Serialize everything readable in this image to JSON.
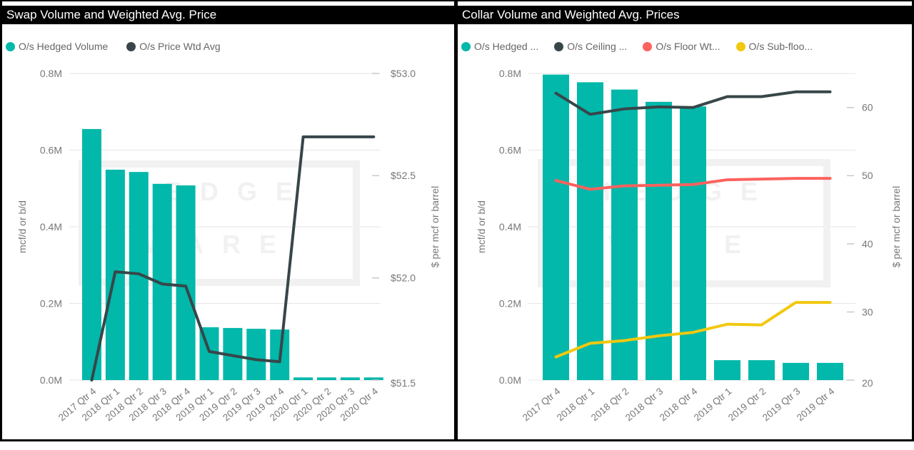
{
  "theme": {
    "teal": "#01B8AA",
    "dark": "#374649",
    "red": "#FD625E",
    "yellow": "#F2C80F",
    "axis_text": "#777777",
    "legend_text": "#666666",
    "gridline": "#E6E6E6",
    "tick_dash": "#C8C8C8",
    "title_bg": "#000000",
    "title_fg": "#FFFFFF",
    "watermark_color": "#F1F1F1",
    "frame": "#000000"
  },
  "watermark": {
    "line1": "HEDGE",
    "line2": "WARE"
  },
  "chart_data": [
    {
      "type": "bar",
      "title": "Swap Volume and Weighted Avg. Price",
      "legend": [
        {
          "label": "O/s Hedged Volume",
          "color": "#01B8AA"
        },
        {
          "label": "O/s Price Wtd Avg",
          "color": "#374649"
        }
      ],
      "categories": [
        "2017 Qtr 4",
        "2018 Qtr 1",
        "2018 Qtr 2",
        "2018 Qtr 3",
        "2018 Qtr 4",
        "2019 Qtr 1",
        "2019 Qtr 2",
        "2019 Qtr 3",
        "2019 Qtr 4",
        "2020 Qtr 1",
        "2020 Qtr 2",
        "2020 Qtr 3",
        "2020 Qtr 4"
      ],
      "bar_series": {
        "name": "O/s Hedged Volume",
        "axis": "y1",
        "color": "#01B8AA",
        "values": [
          0.655,
          0.549,
          0.543,
          0.512,
          0.508,
          0.138,
          0.136,
          0.134,
          0.132,
          0.007,
          0.007,
          0.007,
          0.007
        ]
      },
      "line_series": [
        {
          "name": "O/s Price Wtd Avg",
          "axis": "y2",
          "color": "#374649",
          "values": [
            51.5,
            52.03,
            52.02,
            51.97,
            51.96,
            51.64,
            51.62,
            51.6,
            51.59,
            52.69,
            52.69,
            52.69,
            52.69
          ]
        }
      ],
      "y1_axis": {
        "title": "mcf/d or b/d",
        "min": 0,
        "max": 0.8,
        "ticks": [
          {
            "v": 0,
            "label": "0.0M"
          },
          {
            "v": 0.2,
            "label": "0.2M"
          },
          {
            "v": 0.4,
            "label": "0.4M"
          },
          {
            "v": 0.6,
            "label": "0.6M"
          },
          {
            "v": 0.8,
            "label": "0.8M"
          }
        ]
      },
      "y2_axis": {
        "title": "$ per mcf or barrel",
        "min": 51.5,
        "max": 53.0,
        "ticks": [
          {
            "v": 51.5,
            "label": "$51.5"
          },
          {
            "v": 52.0,
            "label": "$52.0"
          },
          {
            "v": 52.5,
            "label": "$52.5"
          },
          {
            "v": 53.0,
            "label": "$53.0"
          }
        ]
      }
    },
    {
      "type": "bar",
      "title": "Collar Volume and Weighted Avg. Prices",
      "legend": [
        {
          "label": "O/s Hedged ...",
          "color": "#01B8AA"
        },
        {
          "label": "O/s Ceiling ...",
          "color": "#374649"
        },
        {
          "label": "O/s Floor Wt...",
          "color": "#FD625E"
        },
        {
          "label": "O/s Sub-floo...",
          "color": "#F2C80F"
        }
      ],
      "categories": [
        "2017 Qtr 4",
        "2018 Qtr 1",
        "2018 Qtr 2",
        "2018 Qtr 3",
        "2018 Qtr 4",
        "2019 Qtr 1",
        "2019 Qtr 2",
        "2019 Qtr 3",
        "2019 Qtr 4"
      ],
      "bar_series": {
        "name": "O/s Hedged ...",
        "axis": "y1",
        "color": "#01B8AA",
        "values": [
          0.797,
          0.777,
          0.758,
          0.726,
          0.714,
          0.052,
          0.052,
          0.045,
          0.045
        ]
      },
      "line_series": [
        {
          "name": "O/s Ceiling ...",
          "axis": "y2",
          "color": "#374649",
          "values": [
            62.1,
            59.0,
            59.8,
            60.1,
            60.0,
            61.6,
            61.6,
            62.3,
            62.3
          ]
        },
        {
          "name": "O/s Floor Wt...",
          "axis": "y2",
          "color": "#FD625E",
          "values": [
            49.3,
            48.0,
            48.5,
            48.6,
            48.7,
            49.4,
            49.5,
            49.6,
            49.6
          ]
        },
        {
          "name": "O/s Sub-floo...",
          "axis": "y2",
          "color": "#F2C80F",
          "values": [
            23.4,
            25.4,
            25.8,
            26.5,
            27.0,
            28.2,
            28.1,
            31.4,
            31.4
          ]
        }
      ],
      "y1_axis": {
        "title": "mcf/d or b/d",
        "min": 0,
        "max": 0.8,
        "ticks": [
          {
            "v": 0,
            "label": "0.0M"
          },
          {
            "v": 0.2,
            "label": "0.2M"
          },
          {
            "v": 0.4,
            "label": "0.4M"
          },
          {
            "v": 0.6,
            "label": "0.6M"
          },
          {
            "v": 0.8,
            "label": "0.8M"
          }
        ]
      },
      "y2_axis": {
        "title": "$ per mcf or barrel",
        "min": 20,
        "max": 65,
        "ticks": [
          {
            "v": 20,
            "label": "20"
          },
          {
            "v": 30,
            "label": "30"
          },
          {
            "v": 40,
            "label": "40"
          },
          {
            "v": 50,
            "label": "50"
          },
          {
            "v": 60,
            "label": "60"
          }
        ]
      }
    }
  ]
}
